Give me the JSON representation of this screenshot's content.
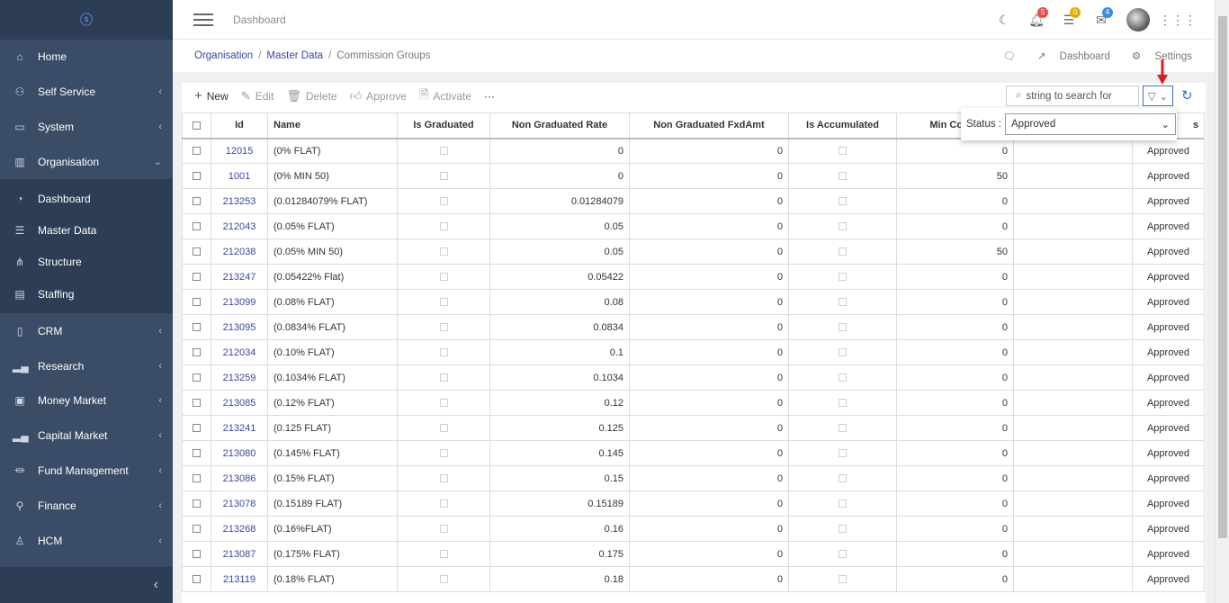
{
  "topbar": {
    "title": "Dashboard",
    "badges": {
      "alerts": "5",
      "tasks": "0",
      "messages": "4"
    }
  },
  "sidebar": {
    "items": [
      {
        "label": "Home",
        "icon": "home-icon",
        "chev": false
      },
      {
        "label": "Self Service",
        "icon": "user-gear-icon",
        "chev": true
      },
      {
        "label": "System",
        "icon": "monitor-icon",
        "chev": true
      },
      {
        "label": "Organisation",
        "icon": "building-icon",
        "chev": true,
        "expanded": true
      }
    ],
    "sub_items": [
      {
        "label": "Dashboard",
        "icon": "gauge-icon"
      },
      {
        "label": "Master Data",
        "icon": "database-icon"
      },
      {
        "label": "Structure",
        "icon": "hierarchy-icon"
      },
      {
        "label": "Staffing",
        "icon": "id-card-icon"
      }
    ],
    "items_after": [
      {
        "label": "CRM",
        "icon": "book-icon"
      },
      {
        "label": "Research",
        "icon": "bar-chart-icon"
      },
      {
        "label": "Money Market",
        "icon": "money-icon"
      },
      {
        "label": "Capital Market",
        "icon": "bar-chart-icon"
      },
      {
        "label": "Fund Management",
        "icon": "bank-icon"
      },
      {
        "label": "Finance",
        "icon": "finance-icon"
      },
      {
        "label": "HCM",
        "icon": "person-icon"
      }
    ]
  },
  "breadcrumb": {
    "items": [
      "Organisation",
      "Master Data"
    ],
    "current": "Commission Groups"
  },
  "crumb_actions": {
    "dashboard": "Dashboard",
    "settings": "Settings"
  },
  "toolbar": {
    "new": "New",
    "edit": "Edit",
    "delete": "Delete",
    "approve": "Approve",
    "activate": "Activate",
    "more": "···"
  },
  "search": {
    "placeholder": "string to search for"
  },
  "filter": {
    "label": "Status :",
    "value": "Approved"
  },
  "table": {
    "columns": [
      "Id",
      "Name",
      "Is Graduated",
      "Non Graduated Rate",
      "Non Graduated FxdAmt",
      "Is Accumulated",
      "Min Comm",
      "",
      "s"
    ],
    "rows": [
      {
        "id": "12015",
        "name": "(0% FLAT)",
        "rate": "0",
        "fxd": "0",
        "min": "0",
        "status": "Approved"
      },
      {
        "id": "1001",
        "name": "(0% MIN 50)",
        "rate": "0",
        "fxd": "0",
        "min": "50",
        "status": "Approved"
      },
      {
        "id": "213253",
        "name": "(0.01284079% FLAT)",
        "rate": "0.01284079",
        "fxd": "0",
        "min": "0",
        "status": "Approved"
      },
      {
        "id": "212043",
        "name": "(0.05% FLAT)",
        "rate": "0.05",
        "fxd": "0",
        "min": "0",
        "status": "Approved"
      },
      {
        "id": "212038",
        "name": "(0.05% MIN 50)",
        "rate": "0.05",
        "fxd": "0",
        "min": "50",
        "status": "Approved"
      },
      {
        "id": "213247",
        "name": "(0.05422% Flat)",
        "rate": "0.05422",
        "fxd": "0",
        "min": "0",
        "status": "Approved"
      },
      {
        "id": "213099",
        "name": "(0.08% FLAT)",
        "rate": "0.08",
        "fxd": "0",
        "min": "0",
        "status": "Approved"
      },
      {
        "id": "213095",
        "name": "(0.0834% FLAT)",
        "rate": "0.0834",
        "fxd": "0",
        "min": "0",
        "status": "Approved"
      },
      {
        "id": "212034",
        "name": "(0.10% FLAT)",
        "rate": "0.1",
        "fxd": "0",
        "min": "0",
        "status": "Approved"
      },
      {
        "id": "213259",
        "name": "(0.1034% FLAT)",
        "rate": "0.1034",
        "fxd": "0",
        "min": "0",
        "status": "Approved"
      },
      {
        "id": "213085",
        "name": "(0.12% FLAT)",
        "rate": "0.12",
        "fxd": "0",
        "min": "0",
        "status": "Approved"
      },
      {
        "id": "213241",
        "name": "(0.125 FLAT)",
        "rate": "0.125",
        "fxd": "0",
        "min": "0",
        "status": "Approved"
      },
      {
        "id": "213080",
        "name": "(0.145% FLAT)",
        "rate": "0.145",
        "fxd": "0",
        "min": "0",
        "status": "Approved"
      },
      {
        "id": "213086",
        "name": "(0.15% FLAT)",
        "rate": "0.15",
        "fxd": "0",
        "min": "0",
        "status": "Approved"
      },
      {
        "id": "213078",
        "name": "(0.15189 FLAT)",
        "rate": "0.15189",
        "fxd": "0",
        "min": "0",
        "status": "Approved"
      },
      {
        "id": "213268",
        "name": "(0.16%FLAT)",
        "rate": "0.16",
        "fxd": "0",
        "min": "0",
        "status": "Approved"
      },
      {
        "id": "213087",
        "name": "(0.175% FLAT)",
        "rate": "0.175",
        "fxd": "0",
        "min": "0",
        "status": "Approved"
      },
      {
        "id": "213119",
        "name": "(0.18% FLAT)",
        "rate": "0.18",
        "fxd": "0",
        "min": "0",
        "status": "Approved"
      }
    ]
  }
}
